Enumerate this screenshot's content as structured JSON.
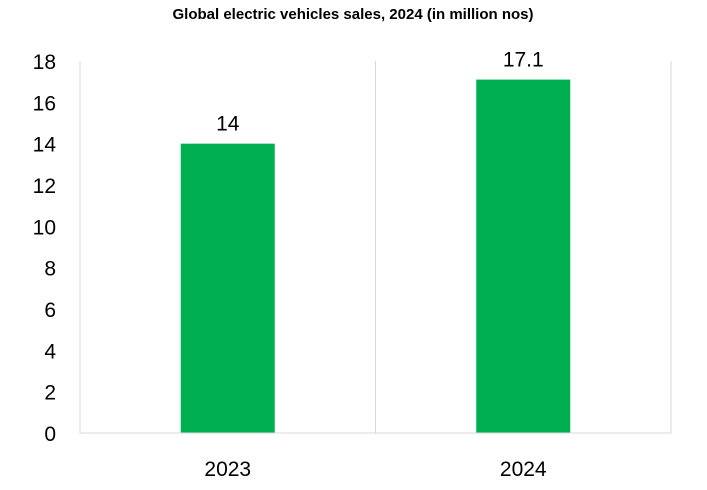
{
  "chart_data": {
    "type": "bar",
    "title": "Global electric vehicles sales, 2024 (in million nos)",
    "categories": [
      "2023",
      "2024"
    ],
    "values": [
      14,
      17.1
    ],
    "data_labels": [
      "14",
      "17.1"
    ],
    "xlabel": "",
    "ylabel": "",
    "ylim": [
      0,
      18
    ],
    "yticks": [
      0,
      2,
      4,
      6,
      8,
      10,
      12,
      14,
      16,
      18
    ],
    "ytick_labels": [
      "0",
      "2",
      "4",
      "6",
      "8",
      "10",
      "12",
      "14",
      "16",
      "18"
    ],
    "grid": "vertical-category-separators",
    "legend": "none",
    "bar_color": "#00b050"
  }
}
